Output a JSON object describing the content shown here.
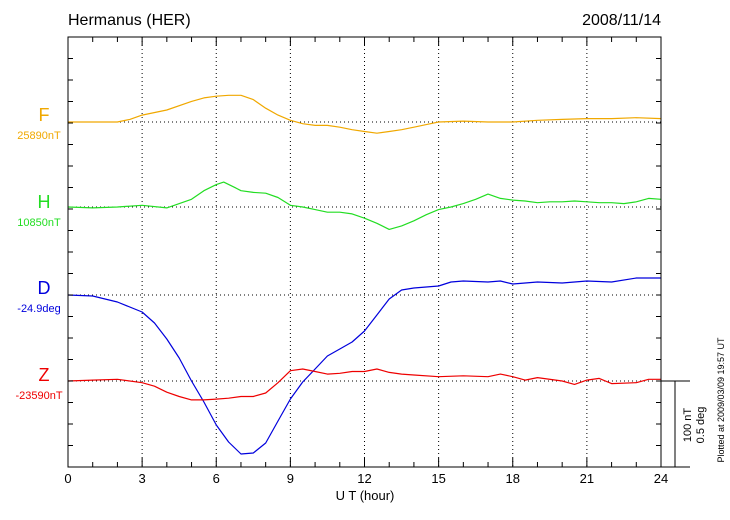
{
  "chart_data": {
    "type": "line",
    "title": "Hermanus (HER)",
    "date": "2008/11/14",
    "xlabel": "U T (hour)",
    "xlim": [
      0,
      24
    ],
    "xticks": [
      0,
      3,
      6,
      9,
      12,
      15,
      18,
      21,
      24
    ],
    "scale_bar": [
      "100 nT",
      "0.5 deg"
    ],
    "plotted_note": "Plotted at 2009/03/09 19:57 UT",
    "grid": true,
    "series": [
      {
        "name": "F",
        "baseline_label": "25890nT",
        "unit": "nT",
        "color": "#f0a800",
        "points": [
          [
            0,
            0
          ],
          [
            1,
            0
          ],
          [
            2,
            0
          ],
          [
            2.5,
            3
          ],
          [
            3,
            8
          ],
          [
            4,
            14
          ],
          [
            5,
            24
          ],
          [
            5.5,
            28
          ],
          [
            6,
            30
          ],
          [
            6.5,
            31
          ],
          [
            7,
            31
          ],
          [
            7.5,
            26
          ],
          [
            8,
            16
          ],
          [
            8.5,
            8
          ],
          [
            9,
            2
          ],
          [
            9.5,
            -2
          ],
          [
            10,
            -4
          ],
          [
            10.5,
            -4
          ],
          [
            11,
            -6
          ],
          [
            11.5,
            -9
          ],
          [
            12,
            -11
          ],
          [
            12.5,
            -13
          ],
          [
            13,
            -11
          ],
          [
            13.5,
            -9
          ],
          [
            14,
            -6
          ],
          [
            14.5,
            -3
          ],
          [
            15,
            0
          ],
          [
            16,
            1
          ],
          [
            17,
            0
          ],
          [
            18,
            0
          ],
          [
            19,
            2
          ],
          [
            20,
            3
          ],
          [
            21,
            4
          ],
          [
            22,
            4
          ],
          [
            23,
            5
          ],
          [
            24,
            4
          ]
        ]
      },
      {
        "name": "H",
        "baseline_label": "10850nT",
        "unit": "nT",
        "color": "#22dd22",
        "points": [
          [
            0,
            0
          ],
          [
            1,
            -1
          ],
          [
            2,
            0
          ],
          [
            3,
            2
          ],
          [
            4,
            -1
          ],
          [
            5,
            9
          ],
          [
            5.5,
            19
          ],
          [
            6,
            26
          ],
          [
            6.3,
            29
          ],
          [
            6.8,
            22
          ],
          [
            7,
            19
          ],
          [
            7.5,
            17
          ],
          [
            8,
            16
          ],
          [
            8.5,
            11
          ],
          [
            9,
            2
          ],
          [
            9.5,
            0
          ],
          [
            10,
            -3
          ],
          [
            10.5,
            -6
          ],
          [
            11,
            -6
          ],
          [
            11.5,
            -8
          ],
          [
            12,
            -13
          ],
          [
            12.5,
            -19
          ],
          [
            13,
            -26
          ],
          [
            13.5,
            -22
          ],
          [
            14,
            -16
          ],
          [
            14.5,
            -9
          ],
          [
            15,
            -3
          ],
          [
            15.5,
            0
          ],
          [
            16,
            4
          ],
          [
            16.5,
            9
          ],
          [
            17,
            15
          ],
          [
            17.5,
            10
          ],
          [
            18,
            8
          ],
          [
            18.5,
            7
          ],
          [
            19,
            5
          ],
          [
            19.5,
            6
          ],
          [
            20,
            6
          ],
          [
            20.5,
            7
          ],
          [
            21,
            6
          ],
          [
            21.5,
            5
          ],
          [
            22,
            5
          ],
          [
            22.5,
            4
          ],
          [
            23,
            6
          ],
          [
            23.5,
            10
          ],
          [
            24,
            9
          ]
        ]
      },
      {
        "name": "D",
        "baseline_label": "-24.9deg",
        "unit": "deg",
        "color": "#0000dd",
        "points": [
          [
            0,
            0
          ],
          [
            1,
            -1
          ],
          [
            2,
            -7
          ],
          [
            3,
            -17
          ],
          [
            3.5,
            -28
          ],
          [
            4,
            -44
          ],
          [
            4.5,
            -63
          ],
          [
            5,
            -86
          ],
          [
            5.5,
            -107
          ],
          [
            6,
            -130
          ],
          [
            6.5,
            -147
          ],
          [
            7,
            -159
          ],
          [
            7.5,
            -158
          ],
          [
            8,
            -148
          ],
          [
            8.5,
            -126
          ],
          [
            9,
            -104
          ],
          [
            9.5,
            -87
          ],
          [
            10,
            -74
          ],
          [
            10.5,
            -61
          ],
          [
            11,
            -54
          ],
          [
            11.5,
            -47
          ],
          [
            12,
            -36
          ],
          [
            12.5,
            -20
          ],
          [
            13,
            -4
          ],
          [
            13.5,
            5
          ],
          [
            14,
            7
          ],
          [
            15,
            9
          ],
          [
            15.5,
            13
          ],
          [
            16,
            14
          ],
          [
            17,
            13
          ],
          [
            17.5,
            14
          ],
          [
            18,
            11
          ],
          [
            19,
            13
          ],
          [
            20,
            12
          ],
          [
            21,
            14
          ],
          [
            22,
            13
          ],
          [
            23,
            17
          ],
          [
            24,
            17
          ]
        ]
      },
      {
        "name": "Z",
        "baseline_label": "-23590nT",
        "unit": "nT",
        "color": "#ee0000",
        "points": [
          [
            0,
            0
          ],
          [
            1,
            1
          ],
          [
            2,
            2
          ],
          [
            3,
            -2
          ],
          [
            3.5,
            -6
          ],
          [
            4,
            -13
          ],
          [
            4.5,
            -18
          ],
          [
            5,
            -22
          ],
          [
            5.5,
            -22
          ],
          [
            6,
            -21
          ],
          [
            6.5,
            -20
          ],
          [
            7,
            -18
          ],
          [
            7.5,
            -18
          ],
          [
            8,
            -14
          ],
          [
            8.5,
            -2
          ],
          [
            9,
            12
          ],
          [
            9.5,
            14
          ],
          [
            10,
            11
          ],
          [
            10.5,
            8
          ],
          [
            11,
            9
          ],
          [
            11.5,
            11
          ],
          [
            12,
            11
          ],
          [
            12.5,
            14
          ],
          [
            13,
            10
          ],
          [
            13.5,
            8
          ],
          [
            14,
            7
          ],
          [
            15,
            5
          ],
          [
            16,
            6
          ],
          [
            17,
            5
          ],
          [
            17.5,
            8
          ],
          [
            18,
            5
          ],
          [
            18.5,
            1
          ],
          [
            19,
            4
          ],
          [
            20,
            0
          ],
          [
            20.5,
            -4
          ],
          [
            21,
            1
          ],
          [
            21.5,
            3
          ],
          [
            22,
            -3
          ],
          [
            23,
            -2
          ],
          [
            23.5,
            2
          ],
          [
            24,
            2
          ]
        ]
      }
    ]
  }
}
